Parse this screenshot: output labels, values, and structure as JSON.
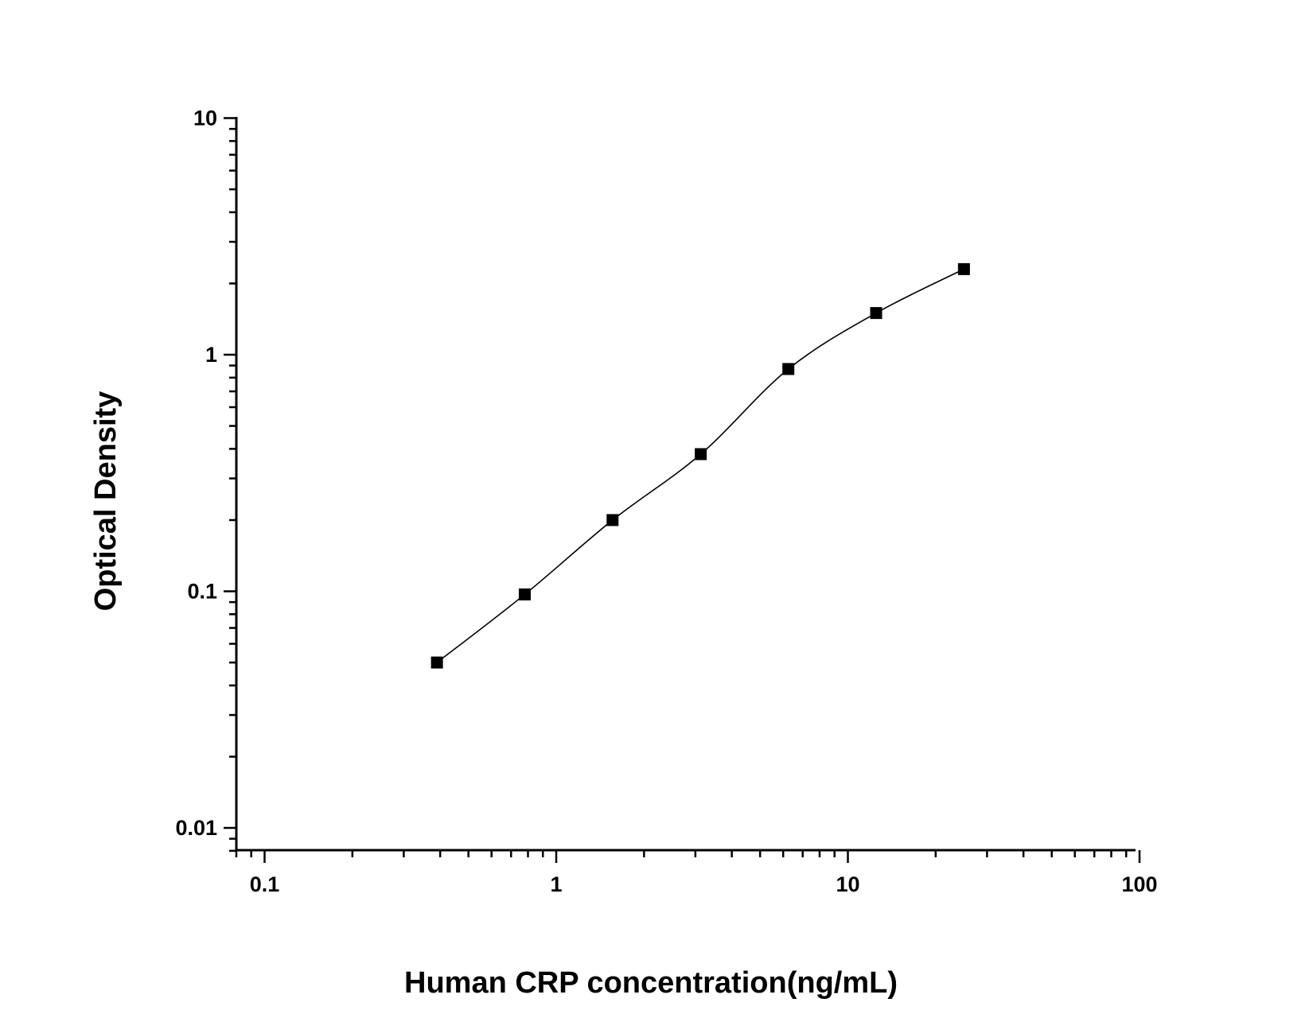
{
  "chart_data": {
    "type": "scatter",
    "title": "",
    "xlabel": "Human CRP concentration(ng/mL)",
    "ylabel": "Optical Density",
    "x_scale": "log",
    "y_scale": "log",
    "xlim": [
      0.08,
      100
    ],
    "ylim": [
      0.0078,
      10
    ],
    "x_ticks": [
      {
        "value": 0.1,
        "label": "0.1"
      },
      {
        "value": 1,
        "label": "1"
      },
      {
        "value": 10,
        "label": "10"
      },
      {
        "value": 100,
        "label": "100"
      }
    ],
    "y_ticks": [
      {
        "value": 0.01,
        "label": "0.01"
      },
      {
        "value": 0.1,
        "label": "0.1"
      },
      {
        "value": 1,
        "label": "1"
      },
      {
        "value": 10,
        "label": "10"
      }
    ],
    "grid": false,
    "legend": "none",
    "series": [
      {
        "x": [
          0.39,
          0.78,
          1.56,
          3.13,
          6.25,
          12.5,
          25
        ],
        "y": [
          0.05,
          0.097,
          0.2,
          0.38,
          0.87,
          1.5,
          2.3
        ],
        "marker": "square",
        "fit_line": true,
        "color": "#000000"
      }
    ]
  }
}
